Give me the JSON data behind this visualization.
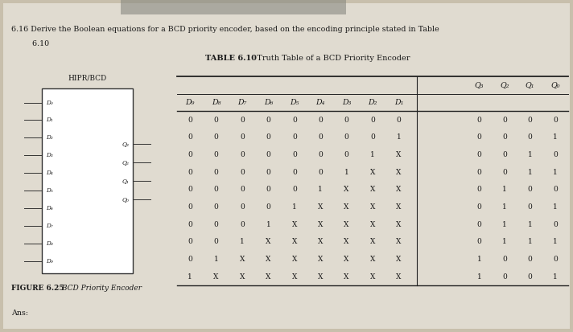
{
  "title_bold": "TABLE 6.10",
  "title_rest": "  Truth Table of a BCD Priority Encoder",
  "header_inputs": [
    "D₉",
    "D₈",
    "D₇",
    "D₆",
    "D₅",
    "D₄",
    "D₃",
    "D₂",
    "D₁"
  ],
  "header_outputs": [
    "Q₃",
    "Q₂",
    "Q₁",
    "Q₀"
  ],
  "rows": [
    [
      "0",
      "0",
      "0",
      "0",
      "0",
      "0",
      "0",
      "0",
      "0",
      "0",
      "0",
      "0",
      "0"
    ],
    [
      "0",
      "0",
      "0",
      "0",
      "0",
      "0",
      "0",
      "0",
      "1",
      "0",
      "0",
      "0",
      "1"
    ],
    [
      "0",
      "0",
      "0",
      "0",
      "0",
      "0",
      "0",
      "1",
      "X",
      "0",
      "0",
      "1",
      "0"
    ],
    [
      "0",
      "0",
      "0",
      "0",
      "0",
      "0",
      "1",
      "X",
      "X",
      "0",
      "0",
      "1",
      "1"
    ],
    [
      "0",
      "0",
      "0",
      "0",
      "0",
      "1",
      "X",
      "X",
      "X",
      "0",
      "1",
      "0",
      "0"
    ],
    [
      "0",
      "0",
      "0",
      "0",
      "1",
      "X",
      "X",
      "X",
      "X",
      "0",
      "1",
      "0",
      "1"
    ],
    [
      "0",
      "0",
      "0",
      "1",
      "X",
      "X",
      "X",
      "X",
      "X",
      "0",
      "1",
      "1",
      "0"
    ],
    [
      "0",
      "0",
      "1",
      "X",
      "X",
      "X",
      "X",
      "X",
      "X",
      "0",
      "1",
      "1",
      "1"
    ],
    [
      "0",
      "1",
      "X",
      "X",
      "X",
      "X",
      "X",
      "X",
      "X",
      "1",
      "0",
      "0",
      "0"
    ],
    [
      "1",
      "X",
      "X",
      "X",
      "X",
      "X",
      "X",
      "X",
      "X",
      "1",
      "0",
      "0",
      "1"
    ]
  ],
  "figure_label": "FIGURE 6.25",
  "figure_desc": " BCD Priority Encoder",
  "problem_text": "6.16 Derive the Boolean equations for a BCD priority encoder, based on the encoding principle stated in Table",
  "problem_text2": "    6.10",
  "ans_text": "Ans:",
  "chip_label": "HIPR/BCD",
  "chip_inputs": [
    "D₀",
    "D₁",
    "D₂",
    "D₃",
    "D₄",
    "D₅",
    "D₆",
    "D₇",
    "D₈",
    "D₉"
  ],
  "chip_outputs": [
    "Q₃",
    "Q₂",
    "Q₁",
    "Q₀"
  ],
  "bg_color": "#c8bfac",
  "paper_color": "#e0dbd0",
  "text_color": "#1a1a1a",
  "line_color": "#222222"
}
